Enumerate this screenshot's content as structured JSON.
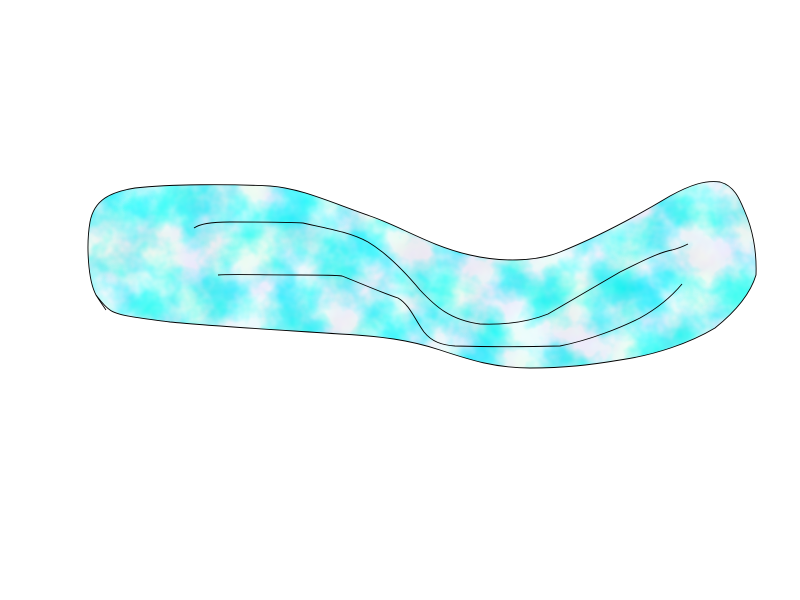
{
  "drawing": {
    "background_color": "#ffffff",
    "shape_fill_base": "#5fe8ef",
    "shape_fill_light": "#e8fcfd",
    "shape_fill_dark": "#00e3ee",
    "outline_color": "#000000"
  }
}
